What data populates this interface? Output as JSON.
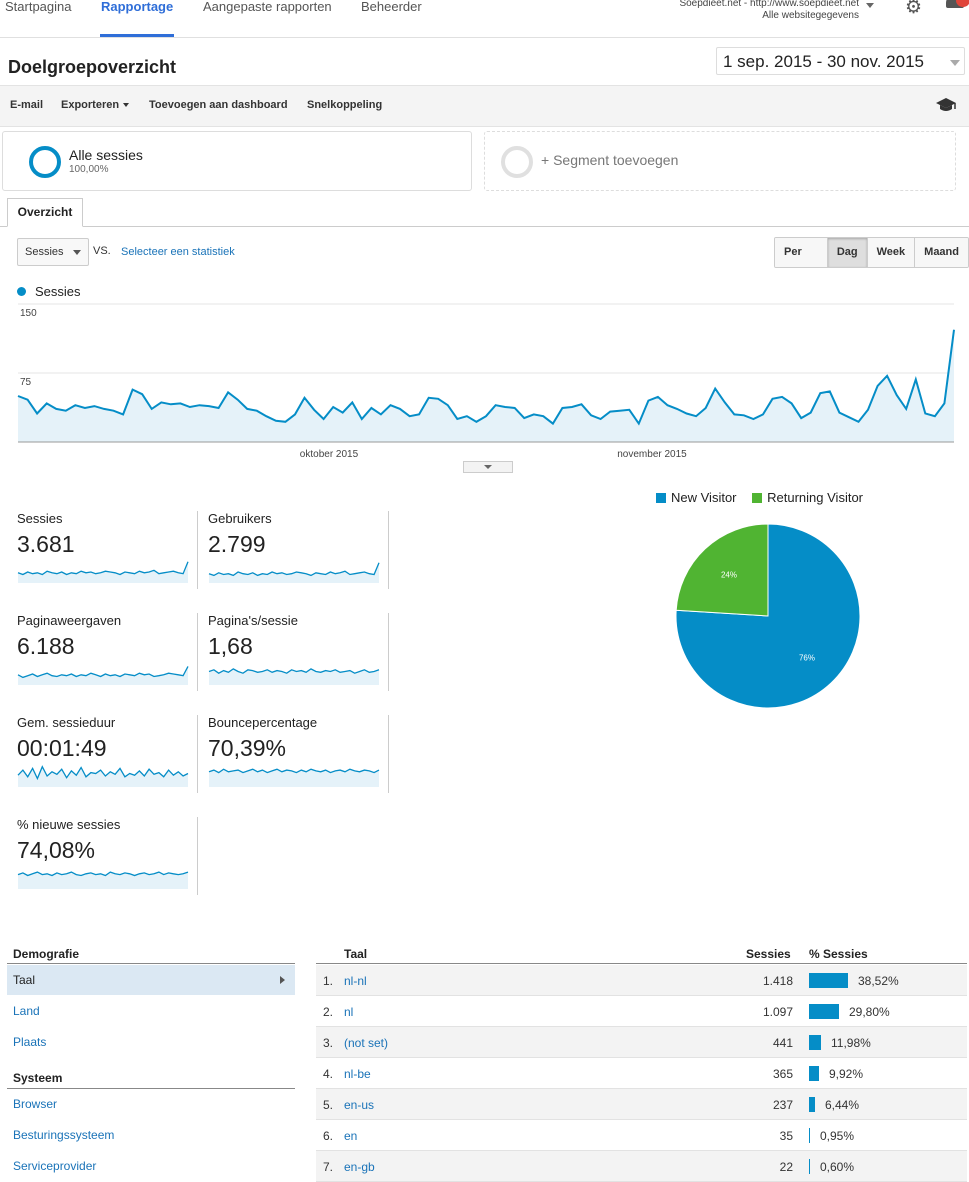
{
  "nav": {
    "tabs": [
      "Startpagina",
      "Rapportage",
      "Aangepaste rapporten",
      "Beheerder"
    ],
    "account_line1": "Soepdieet.net - http://www.soepdieet.net",
    "account_line2": "Alle websitegegevens"
  },
  "header": {
    "title": "Doelgroepoverzicht",
    "date_range": "1 sep. 2015 - 30 nov. 2015"
  },
  "toolbar": {
    "email": "E-mail",
    "export": "Exporteren",
    "add_dashboard": "Toevoegen aan dashboard",
    "shortcut": "Snelkoppeling"
  },
  "segments": {
    "active": {
      "name": "Alle sessies",
      "percent": "100,00%"
    },
    "add_label": "+ Segment toevoegen"
  },
  "tabs": {
    "overview": "Overzicht"
  },
  "chart_controls": {
    "metric": "Sessies",
    "vs": "VS.",
    "select_stat": "Selecteer een statistiek",
    "periods": [
      "Per uur",
      "Dag",
      "Week",
      "Maand"
    ],
    "active_period": "Dag"
  },
  "colors": {
    "accent": "#058dc7",
    "returning": "#50b432",
    "link": "#1a73b8"
  },
  "chart_data": [
    {
      "type": "area",
      "series": [
        {
          "name": "Sessies",
          "values": [
            50,
            46,
            31,
            42,
            36,
            34,
            40,
            37,
            39,
            36,
            34,
            30,
            57,
            52,
            36,
            43,
            41,
            42,
            38,
            40,
            39,
            37,
            54,
            46,
            36,
            34,
            28,
            23,
            22,
            30,
            48,
            35,
            25,
            38,
            32,
            43,
            25,
            37,
            30,
            40,
            36,
            28,
            30,
            48,
            47,
            40,
            25,
            28,
            22,
            28,
            40,
            38,
            37,
            26,
            30,
            28,
            20,
            37,
            38,
            41,
            29,
            25,
            33,
            34,
            35,
            20,
            45,
            49,
            40,
            36,
            31,
            28,
            37,
            58,
            43,
            30,
            29,
            25,
            30,
            47,
            49,
            42,
            26,
            32,
            53,
            55,
            32,
            27,
            22,
            35,
            61,
            72,
            51,
            36,
            68,
            31,
            28,
            42,
            122
          ]
        }
      ],
      "x_labels": [
        "oktober 2015",
        "november 2015"
      ],
      "y_ticks": [
        "150",
        "75"
      ],
      "ylim": [
        0,
        150
      ]
    },
    {
      "type": "pie",
      "labels": [
        "New Visitor",
        "Returning Visitor"
      ],
      "values": [
        76,
        24
      ],
      "value_labels": [
        "76%",
        "24%"
      ],
      "legend_position": "top"
    }
  ],
  "scorecards": [
    {
      "label": "Sessies",
      "value": "3.681",
      "spark": [
        12,
        10,
        13,
        11,
        12,
        10,
        14,
        12,
        11,
        13,
        10,
        12,
        11,
        14,
        12,
        13,
        11,
        12,
        14,
        13,
        12,
        10,
        13,
        12,
        11,
        14,
        12,
        13,
        15,
        11,
        12,
        13,
        14,
        12,
        11,
        25
      ]
    },
    {
      "label": "Gebruikers",
      "value": "2.799",
      "spark": [
        11,
        9,
        12,
        10,
        11,
        9,
        13,
        11,
        10,
        12,
        9,
        11,
        10,
        13,
        11,
        12,
        10,
        11,
        13,
        12,
        11,
        9,
        12,
        11,
        10,
        13,
        11,
        12,
        14,
        10,
        11,
        12,
        13,
        11,
        10,
        24
      ]
    },
    {
      "label": "Paginaweergaven",
      "value": "6.188",
      "spark": [
        12,
        9,
        11,
        13,
        10,
        12,
        14,
        11,
        10,
        12,
        11,
        13,
        10,
        12,
        11,
        14,
        12,
        10,
        13,
        11,
        12,
        10,
        13,
        12,
        11,
        14,
        12,
        13,
        10,
        11,
        12,
        14,
        13,
        12,
        11,
        22
      ]
    },
    {
      "label": "Pagina's/sessie",
      "value": "1,68",
      "spark": [
        16,
        18,
        14,
        17,
        15,
        19,
        16,
        14,
        18,
        17,
        15,
        16,
        18,
        15,
        17,
        16,
        14,
        18,
        16,
        17,
        15,
        19,
        16,
        15,
        17,
        16,
        18,
        15,
        16,
        17,
        14,
        16,
        18,
        15,
        16,
        18
      ]
    },
    {
      "label": "Gem. sessieduur",
      "value": "00:01:49",
      "spark": [
        14,
        20,
        12,
        22,
        10,
        24,
        13,
        18,
        15,
        21,
        11,
        19,
        14,
        23,
        12,
        17,
        16,
        20,
        13,
        18,
        15,
        22,
        12,
        16,
        14,
        19,
        13,
        21,
        15,
        17,
        12,
        20,
        14,
        18,
        13,
        16
      ]
    },
    {
      "label": "Bouncepercentage",
      "value": "70,39%",
      "spark": [
        18,
        20,
        17,
        21,
        18,
        19,
        20,
        17,
        19,
        21,
        18,
        20,
        17,
        19,
        21,
        18,
        20,
        19,
        17,
        20,
        18,
        21,
        19,
        18,
        20,
        17,
        19,
        20,
        18,
        21,
        19,
        18,
        20,
        19,
        17,
        20
      ]
    },
    {
      "label": "% nieuwe sessies",
      "value": "74,08%",
      "spark": [
        17,
        19,
        16,
        18,
        20,
        17,
        18,
        16,
        19,
        17,
        18,
        20,
        17,
        16,
        18,
        19,
        17,
        18,
        16,
        20,
        18,
        17,
        19,
        18,
        16,
        18,
        19,
        17,
        18,
        20,
        17,
        19,
        18,
        17,
        18,
        20
      ]
    }
  ],
  "demographics": {
    "heading": "Demografie",
    "items": [
      "Taal",
      "Land",
      "Plaats"
    ],
    "system_heading": "Systeem",
    "system_items": [
      "Browser",
      "Besturingssysteem",
      "Serviceprovider"
    ]
  },
  "table": {
    "headers": [
      "Taal",
      "Sessies",
      "% Sessies"
    ],
    "rows": [
      {
        "idx": "1.",
        "lang": "nl-nl",
        "sessions": "1.418",
        "pct": "38,52%",
        "pct_value": 38.52
      },
      {
        "idx": "2.",
        "lang": "nl",
        "sessions": "1.097",
        "pct": "29,80%",
        "pct_value": 29.8
      },
      {
        "idx": "3.",
        "lang": "(not set)",
        "sessions": "441",
        "pct": "11,98%",
        "pct_value": 11.98
      },
      {
        "idx": "4.",
        "lang": "nl-be",
        "sessions": "365",
        "pct": "9,92%",
        "pct_value": 9.92
      },
      {
        "idx": "5.",
        "lang": "en-us",
        "sessions": "237",
        "pct": "6,44%",
        "pct_value": 6.44
      },
      {
        "idx": "6.",
        "lang": "en",
        "sessions": "35",
        "pct": "0,95%",
        "pct_value": 0.95
      },
      {
        "idx": "7.",
        "lang": "en-gb",
        "sessions": "22",
        "pct": "0,60%",
        "pct_value": 0.6
      }
    ]
  }
}
